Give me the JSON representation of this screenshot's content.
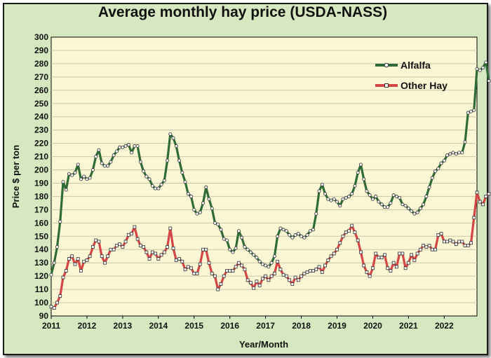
{
  "chart_data": {
    "type": "line",
    "title": "Average monthly hay price (USDA-NASS)",
    "xlabel": "Year/Month",
    "ylabel": "Price $ per ton",
    "ylim": [
      90,
      300
    ],
    "y_ticks": [
      90,
      100,
      110,
      120,
      130,
      140,
      150,
      160,
      170,
      180,
      190,
      200,
      210,
      220,
      230,
      240,
      250,
      260,
      270,
      280,
      290,
      300
    ],
    "x_ticks": [
      "2011",
      "2012",
      "2013",
      "2014",
      "2015",
      "2016",
      "2017",
      "2018",
      "2019",
      "2020",
      "2021",
      "2022"
    ],
    "x_start": "2011-01",
    "grid": "horizontal",
    "legend": "top-right",
    "series": [
      {
        "name": "Alfalfa",
        "color": "#2e6b36",
        "values": [
          121,
          130,
          142,
          161,
          191,
          185,
          197,
          196,
          198,
          204,
          193,
          195,
          193,
          194,
          200,
          210,
          215,
          205,
          203,
          203,
          206,
          211,
          214,
          217,
          217,
          218,
          219,
          213,
          218,
          218,
          206,
          199,
          195,
          193,
          188,
          186,
          186,
          189,
          192,
          207,
          227,
          224,
          218,
          207,
          198,
          191,
          182,
          180,
          170,
          167,
          168,
          175,
          187,
          178,
          171,
          160,
          159,
          155,
          148,
          147,
          140,
          138,
          141,
          154,
          149,
          142,
          140,
          138,
          136,
          134,
          131,
          129,
          128,
          127,
          130,
          135,
          150,
          156,
          155,
          154,
          151,
          149,
          151,
          152,
          150,
          149,
          151,
          154,
          155,
          167,
          184,
          189,
          182,
          178,
          177,
          178,
          176,
          173,
          178,
          179,
          180,
          182,
          188,
          198,
          204,
          193,
          184,
          181,
          178,
          180,
          176,
          174,
          172,
          172,
          175,
          181,
          180,
          179,
          174,
          173,
          171,
          169,
          167,
          168,
          171,
          174,
          180,
          187,
          194,
          199,
          201,
          205,
          207,
          211,
          212,
          213,
          212,
          213,
          213,
          221,
          243,
          244,
          245,
          276,
          275,
          277,
          281,
          267
        ]
      },
      {
        "name": "Other Hay",
        "color": "#d64545",
        "values": [
          97,
          96,
          100,
          105,
          119,
          124,
          133,
          135,
          129,
          133,
          124,
          131,
          132,
          135,
          142,
          147,
          146,
          135,
          130,
          135,
          140,
          140,
          143,
          144,
          142,
          146,
          151,
          152,
          157,
          148,
          143,
          142,
          138,
          133,
          138,
          137,
          133,
          136,
          138,
          142,
          156,
          141,
          132,
          133,
          131,
          125,
          127,
          126,
          122,
          122,
          129,
          140,
          140,
          130,
          122,
          120,
          110,
          114,
          120,
          124,
          124,
          124,
          127,
          130,
          128,
          125,
          117,
          115,
          111,
          116,
          113,
          118,
          120,
          117,
          120,
          122,
          131,
          125,
          121,
          120,
          117,
          114,
          119,
          117,
          120,
          122,
          123,
          124,
          124,
          125,
          127,
          123,
          128,
          132,
          135,
          137,
          140,
          145,
          150,
          153,
          154,
          158,
          153,
          147,
          138,
          128,
          123,
          120,
          126,
          137,
          134,
          134,
          136,
          126,
          124,
          130,
          127,
          137,
          137,
          126,
          130,
          136,
          132,
          137,
          140,
          143,
          142,
          143,
          140,
          140,
          151,
          152,
          146,
          146,
          147,
          146,
          144,
          146,
          146,
          143,
          143,
          145,
          164,
          183,
          176,
          174,
          180,
          182
        ]
      }
    ]
  }
}
